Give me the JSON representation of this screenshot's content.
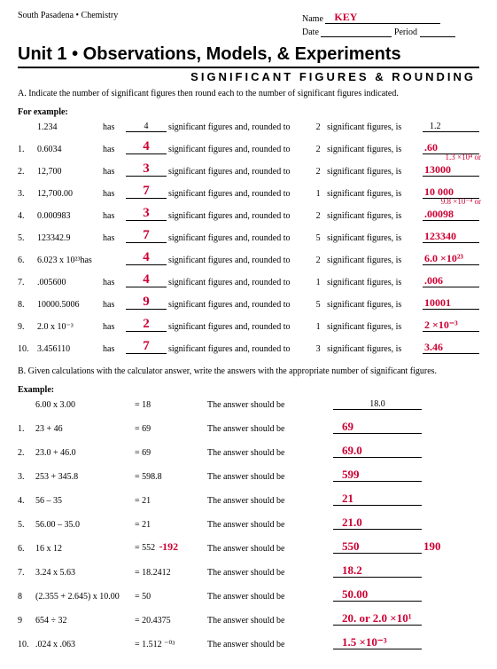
{
  "header": {
    "course": "South Pasadena • Chemistry",
    "name_label": "Name",
    "name_value": "KEY",
    "date_label": "Date",
    "period_label": "Period"
  },
  "title": "Unit 1 • Observations, Models, & Experiments",
  "subtitle": "SIGNIFICANT FIGURES & ROUNDING",
  "instrA": "A. Indicate the number of significant figures then round each to the number of significant figures indicated.",
  "example_label": "For example:",
  "text_has": "has",
  "text_mid": "significant figures and, rounded to",
  "text_end": "significant figures, is",
  "rowsA": [
    {
      "n": "",
      "v": "1.234",
      "sf": "4",
      "sf_printed": true,
      "r": "2",
      "ans": "1.2",
      "ans_printed": true,
      "note": ""
    },
    {
      "n": "1.",
      "v": "0.6034",
      "sf": "4",
      "r": "2",
      "ans": ".60",
      "note": ""
    },
    {
      "n": "2.",
      "v": "12,700",
      "sf": "3",
      "r": "2",
      "ans": "13000",
      "note": "1.3 ×10⁴ or"
    },
    {
      "n": "3.",
      "v": "12,700.00",
      "sf": "7",
      "r": "1",
      "ans": "10 000",
      "note": ""
    },
    {
      "n": "4.",
      "v": "0.000983",
      "sf": "3",
      "r": "2",
      "ans": ".00098",
      "note": "9.8 ×10⁻⁴ or"
    },
    {
      "n": "5.",
      "v": "123342.9",
      "sf": "7",
      "r": "5",
      "ans": "123340",
      "note": ""
    },
    {
      "n": "6.",
      "v": "6.023 x 10²³has",
      "sf": "4",
      "r": "2",
      "ans": "6.0 ×10²³",
      "note": "",
      "nohas": true
    },
    {
      "n": "7.",
      "v": ".005600",
      "sf": "4",
      "r": "1",
      "ans": ".006",
      "note": ""
    },
    {
      "n": "8.",
      "v": "10000.5006",
      "sf": "9",
      "r": "5",
      "ans": "10001",
      "note": ""
    },
    {
      "n": "9.",
      "v": "2.0 x 10⁻³",
      "sf": "2",
      "r": "1",
      "ans": "2 ×10⁻³",
      "note": ""
    },
    {
      "n": "10.",
      "v": "3.456110",
      "sf": "7",
      "r": "3",
      "ans": "3.46",
      "note": ""
    }
  ],
  "instrB": "B. Given calculations with the calculator answer, write the answers with the appropriate number of significant figures.",
  "exampleB": "Example:",
  "text_ansb": "The answer should be",
  "rowsB": [
    {
      "n": "",
      "expr": "6.00 x 3.00",
      "eq": "= 18",
      "ans": "18.0",
      "ans_printed": true,
      "extra": ""
    },
    {
      "n": "1.",
      "expr": "23 + 46",
      "eq": "= 69",
      "ans": "69",
      "extra": ""
    },
    {
      "n": "2.",
      "expr": "23.0 + 46.0",
      "eq": "= 69",
      "ans": "69.0",
      "extra": ""
    },
    {
      "n": "3.",
      "expr": "253 + 345.8",
      "eq": "= 598.8",
      "ans": "599",
      "extra": ""
    },
    {
      "n": "4.",
      "expr": "56 – 35",
      "eq": "= 21",
      "ans": "21",
      "extra": ""
    },
    {
      "n": "5.",
      "expr": "56.00 – 35.0",
      "eq": "= 21",
      "ans": "21.0",
      "extra": ""
    },
    {
      "n": "6.",
      "expr": "16 x 12",
      "eq": "= 552",
      "correction": "192",
      "ans": "550",
      "extra": "190"
    },
    {
      "n": "7.",
      "expr": "3.24 x 5.63",
      "eq": "= 18.2412",
      "ans": "18.2",
      "extra": ""
    },
    {
      "n": "8",
      "expr": "(2.355 + 2.645) x 10.00",
      "eq": "= 50",
      "ans": "50.00",
      "extra": ""
    },
    {
      "n": "9",
      "expr": "654 ÷ 32",
      "eq": "= 20.4375",
      "ans": "20. or 2.0 ×10¹",
      "extra": ""
    },
    {
      "n": "10.",
      "expr": ".024 x .063",
      "eq": "= 1.512 ⁻⁰³",
      "ans": "1.5 ×10⁻³",
      "extra": ""
    }
  ]
}
